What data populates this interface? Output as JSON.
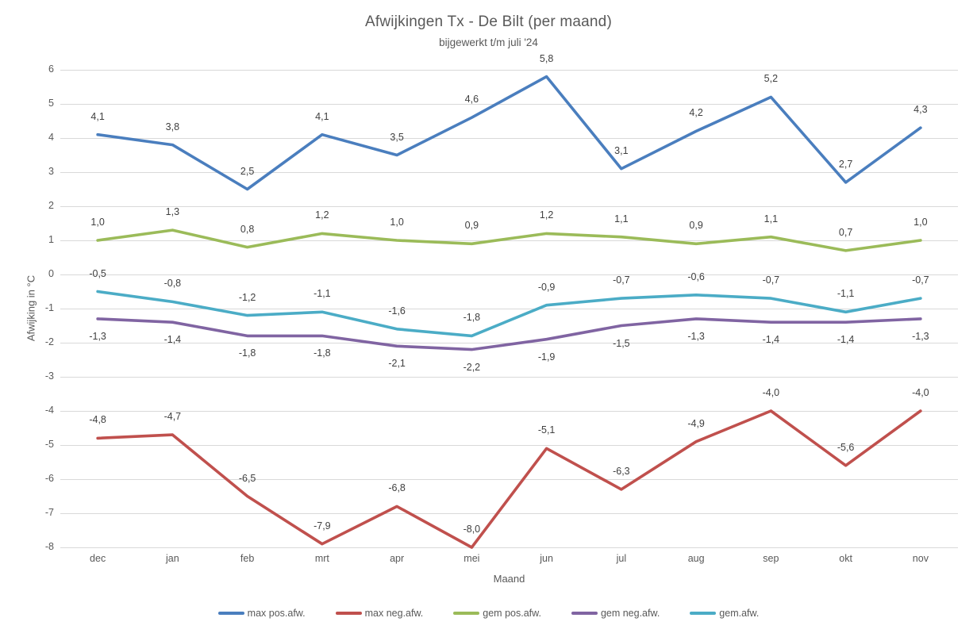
{
  "chart_data": {
    "type": "line",
    "title": "Afwijkingen Tx - De Bilt (per maand)",
    "subtitle": "bijgewerkt t/m juli '24",
    "xlabel": "Maand",
    "ylabel": "Afwijking in °C",
    "categories": [
      "dec",
      "jan",
      "feb",
      "mrt",
      "apr",
      "mei",
      "jun",
      "jul",
      "aug",
      "sep",
      "okt",
      "nov"
    ],
    "ylim": [
      -8,
      6
    ],
    "ytick_step": 1,
    "grid": true,
    "legend_position": "bottom",
    "decimal_separator": ",",
    "colors": {
      "grid": "#d9d9d9",
      "axis_text": "#595959",
      "data_label_text": "#404040"
    },
    "series": [
      {
        "name": "max pos.afw.",
        "color": "#4a7ebe",
        "label_position": "above",
        "values": [
          4.1,
          3.8,
          2.5,
          4.1,
          3.5,
          4.6,
          5.8,
          3.1,
          4.2,
          5.2,
          2.7,
          4.3
        ]
      },
      {
        "name": "max neg.afw.",
        "color": "#c0504d",
        "label_position": "above",
        "values": [
          -4.8,
          -4.7,
          -6.5,
          -7.9,
          -6.8,
          -8.0,
          -5.1,
          -6.3,
          -4.9,
          -4.0,
          -5.6,
          -4.0
        ]
      },
      {
        "name": "gem pos.afw.",
        "color": "#9bbb59",
        "label_position": "above",
        "values": [
          1.0,
          1.3,
          0.8,
          1.2,
          1.0,
          0.9,
          1.2,
          1.1,
          0.9,
          1.1,
          0.7,
          1.0
        ]
      },
      {
        "name": "gem neg.afw.",
        "color": "#8064a2",
        "label_position": "below",
        "values": [
          -1.3,
          -1.4,
          -1.8,
          -1.8,
          -2.1,
          -2.2,
          -1.9,
          -1.5,
          -1.3,
          -1.4,
          -1.4,
          -1.3
        ]
      },
      {
        "name": "gem.afw.",
        "color": "#4bacc6",
        "label_position": "above",
        "values": [
          -0.5,
          -0.8,
          -1.2,
          -1.1,
          -1.6,
          -1.8,
          -0.9,
          -0.7,
          -0.6,
          -0.7,
          -1.1,
          -0.7
        ]
      }
    ]
  }
}
